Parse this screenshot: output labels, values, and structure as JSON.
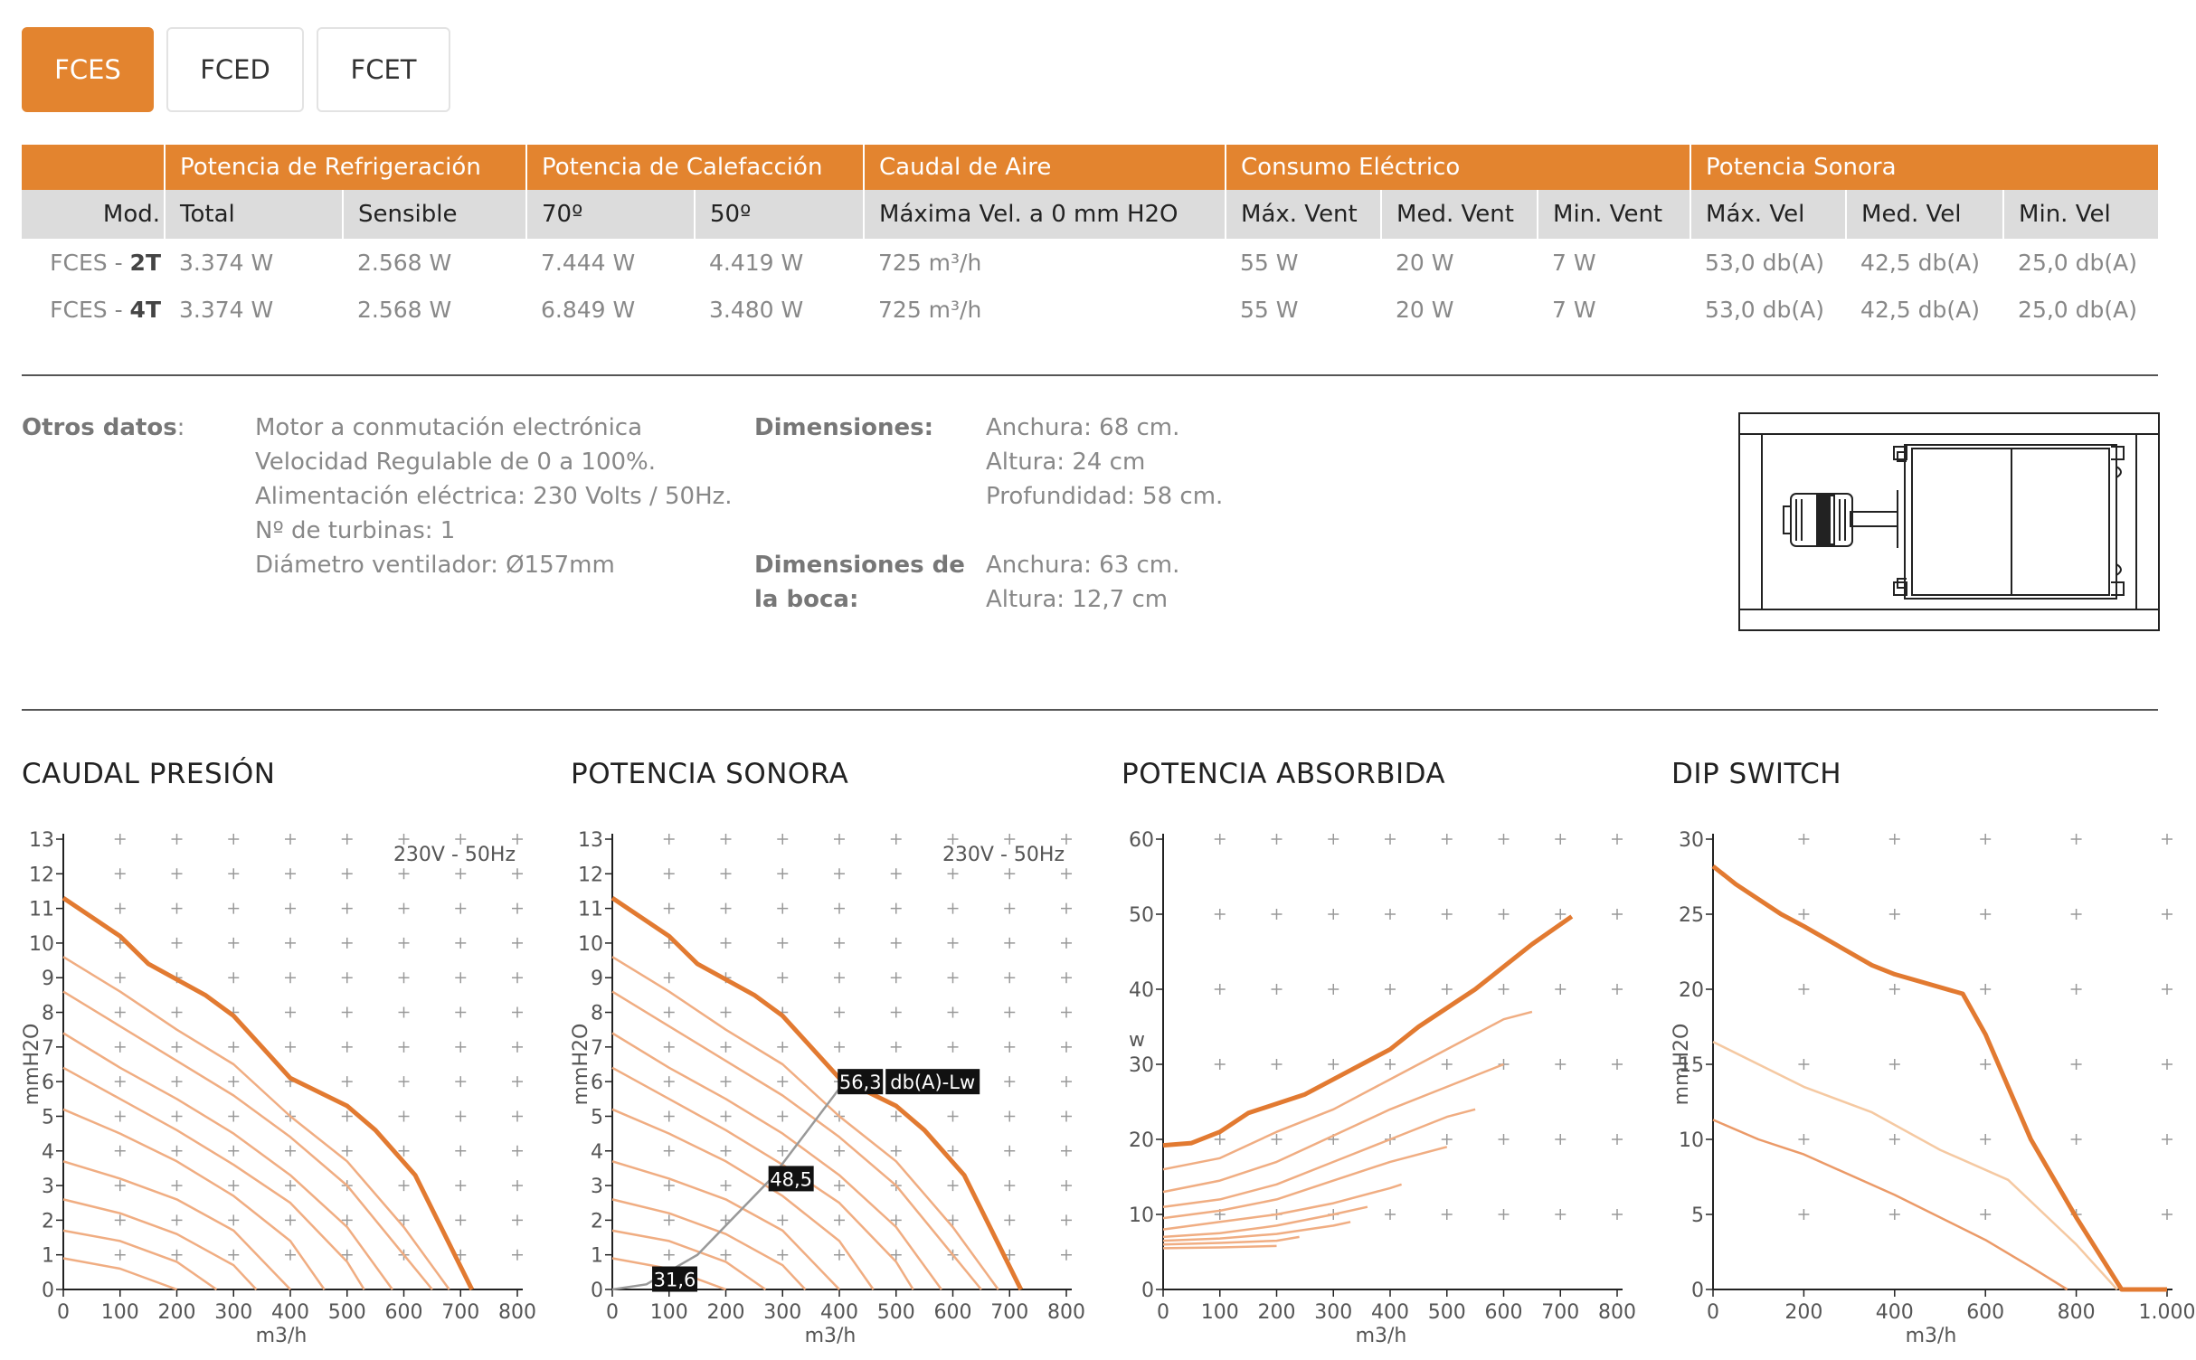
{
  "tabs": [
    {
      "label": "FCES",
      "active": true
    },
    {
      "label": "FCED",
      "active": false
    },
    {
      "label": "FCET",
      "active": false
    }
  ],
  "table": {
    "groups": [
      {
        "label": "",
        "span": 1
      },
      {
        "label": "Potencia de Refrigeración",
        "span": 2
      },
      {
        "label": "Potencia de Calefacción",
        "span": 2
      },
      {
        "label": "Caudal de Aire",
        "span": 1
      },
      {
        "label": "Consumo Eléctrico",
        "span": 3
      },
      {
        "label": "Potencia Sonora",
        "span": 3
      }
    ],
    "columns": [
      "Mod.",
      "Total",
      "Sensible",
      "70º",
      "50º",
      "Máxima Vel. a 0 mm H2O",
      "Máx. Vent",
      "Med. Vent",
      "Min. Vent",
      "Máx. Vel",
      "Med. Vel",
      "Min. Vel"
    ],
    "rows": [
      {
        "model_prefix": "FCES - ",
        "model_suffix": "2T",
        "cells": [
          "3.374 W",
          "2.568 W",
          "7.444 W",
          "4.419 W",
          "725 m³/h",
          "55 W",
          "20 W",
          "7 W",
          "53,0 db(A)",
          "42,5 db(A)",
          "25,0 db(A)"
        ]
      },
      {
        "model_prefix": "FCES - ",
        "model_suffix": "4T",
        "cells": [
          "3.374 W",
          "2.568 W",
          "6.849 W",
          "3.480 W",
          "725 m³/h",
          "55 W",
          "20 W",
          "7 W",
          "53,0 db(A)",
          "42,5 db(A)",
          "25,0 db(A)"
        ]
      }
    ]
  },
  "otros": {
    "label": "Otros datos",
    "colon": ":",
    "lines": [
      "Motor a conmutación electrónica",
      "Velocidad Regulable de 0 a 100%.",
      "Alimentación eléctrica: 230 Volts / 50Hz.",
      "Nº de turbinas: 1",
      "Diámetro ventilador: Ø157mm"
    ]
  },
  "dimensiones": {
    "label": "Dimensiones:",
    "lines": [
      "Anchura: 68 cm.",
      "Altura: 24 cm",
      "Profundidad: 58 cm."
    ]
  },
  "boca": {
    "label_line1": "Dimensiones de",
    "label_line2": "la boca:",
    "lines": [
      "Anchura: 63 cm.",
      "Altura: 12,7 cm"
    ]
  },
  "chart_data": [
    {
      "id": "caudal",
      "type": "line",
      "title": "CAUDAL PRESIÓN",
      "xlabel": "m3/h",
      "ylabel": "mmH2O",
      "annotation": "230V - 50Hz",
      "xlim": [
        0,
        800
      ],
      "ylim": [
        0,
        13
      ],
      "xticks": [
        "0",
        "100",
        "200",
        "300",
        "400",
        "500",
        "600",
        "700",
        "800"
      ],
      "yticks": [
        "0",
        "1",
        "2",
        "3",
        "4",
        "5",
        "6",
        "7",
        "8",
        "9",
        "10",
        "11",
        "12",
        "13"
      ],
      "xtick_values": [
        0,
        100,
        200,
        300,
        400,
        500,
        600,
        700,
        800
      ],
      "ytick_values": [
        0,
        1,
        2,
        3,
        4,
        5,
        6,
        7,
        8,
        9,
        10,
        11,
        12,
        13
      ],
      "grid_x": [
        100,
        200,
        300,
        400,
        500,
        600,
        700,
        800
      ],
      "grid_y": [
        1,
        2,
        3,
        4,
        5,
        6,
        7,
        8,
        9,
        10,
        11,
        12,
        13
      ],
      "series": [
        {
          "name": "max",
          "weight": "bold",
          "x": [
            0,
            100,
            150,
            250,
            300,
            400,
            500,
            550,
            620,
            720
          ],
          "y": [
            11.3,
            10.2,
            9.4,
            8.5,
            7.9,
            6.1,
            5.3,
            4.6,
            3.3,
            0
          ]
        },
        {
          "name": "s2",
          "x": [
            0,
            100,
            200,
            300,
            400,
            500,
            600,
            680
          ],
          "y": [
            9.6,
            8.6,
            7.5,
            6.5,
            5.0,
            3.7,
            1.8,
            0
          ]
        },
        {
          "name": "s3",
          "x": [
            0,
            100,
            200,
            300,
            400,
            500,
            600,
            650
          ],
          "y": [
            8.6,
            7.6,
            6.6,
            5.6,
            4.4,
            3.0,
            1.0,
            0
          ]
        },
        {
          "name": "s4",
          "x": [
            0,
            100,
            200,
            300,
            400,
            500,
            580
          ],
          "y": [
            7.4,
            6.4,
            5.5,
            4.5,
            3.3,
            1.8,
            0
          ]
        },
        {
          "name": "s5",
          "x": [
            0,
            100,
            200,
            300,
            400,
            500,
            530
          ],
          "y": [
            6.4,
            5.5,
            4.6,
            3.6,
            2.5,
            0.8,
            0
          ]
        },
        {
          "name": "s6",
          "x": [
            0,
            100,
            200,
            300,
            400,
            460
          ],
          "y": [
            5.2,
            4.5,
            3.7,
            2.7,
            1.4,
            0
          ]
        },
        {
          "name": "s7",
          "x": [
            0,
            100,
            200,
            300,
            400
          ],
          "y": [
            3.7,
            3.2,
            2.6,
            1.7,
            0
          ]
        },
        {
          "name": "s8",
          "x": [
            0,
            100,
            200,
            300,
            340
          ],
          "y": [
            2.6,
            2.2,
            1.6,
            0.7,
            0
          ]
        },
        {
          "name": "s9",
          "x": [
            0,
            100,
            200,
            270
          ],
          "y": [
            1.7,
            1.4,
            0.8,
            0
          ]
        },
        {
          "name": "s10",
          "x": [
            0,
            100,
            200
          ],
          "y": [
            0.9,
            0.6,
            0
          ]
        }
      ]
    },
    {
      "id": "sonora",
      "type": "line",
      "title": "POTENCIA SONORA",
      "xlabel": "m3/h",
      "ylabel": "mmH2O",
      "annotation": "230V - 50Hz",
      "xlim": [
        0,
        800
      ],
      "ylim": [
        0,
        13
      ],
      "xticks": [
        "0",
        "100",
        "200",
        "300",
        "400",
        "500",
        "600",
        "700",
        "800"
      ],
      "yticks": [
        "0",
        "1",
        "2",
        "3",
        "4",
        "5",
        "6",
        "7",
        "8",
        "9",
        "10",
        "11",
        "12",
        "13"
      ],
      "xtick_values": [
        0,
        100,
        200,
        300,
        400,
        500,
        600,
        700,
        800
      ],
      "ytick_values": [
        0,
        1,
        2,
        3,
        4,
        5,
        6,
        7,
        8,
        9,
        10,
        11,
        12,
        13
      ],
      "grid_x": [
        100,
        200,
        300,
        400,
        500,
        600,
        700,
        800
      ],
      "grid_y": [
        1,
        2,
        3,
        4,
        5,
        6,
        7,
        8,
        9,
        10,
        11,
        12,
        13
      ],
      "series": [
        {
          "name": "max",
          "weight": "bold",
          "x": [
            0,
            100,
            150,
            250,
            300,
            400,
            500,
            550,
            620,
            720
          ],
          "y": [
            11.3,
            10.2,
            9.4,
            8.5,
            7.9,
            6.1,
            5.3,
            4.6,
            3.3,
            0
          ]
        },
        {
          "name": "s2",
          "x": [
            0,
            100,
            200,
            300,
            400,
            500,
            600,
            680
          ],
          "y": [
            9.6,
            8.6,
            7.5,
            6.5,
            5.0,
            3.7,
            1.8,
            0
          ]
        },
        {
          "name": "s3",
          "x": [
            0,
            100,
            200,
            300,
            400,
            500,
            600,
            650
          ],
          "y": [
            8.6,
            7.6,
            6.6,
            5.6,
            4.4,
            3.0,
            1.0,
            0
          ]
        },
        {
          "name": "s4",
          "x": [
            0,
            100,
            200,
            300,
            400,
            500,
            580
          ],
          "y": [
            7.4,
            6.4,
            5.5,
            4.5,
            3.3,
            1.8,
            0
          ]
        },
        {
          "name": "s5",
          "x": [
            0,
            100,
            200,
            300,
            400,
            500,
            530
          ],
          "y": [
            6.4,
            5.5,
            4.6,
            3.6,
            2.5,
            0.8,
            0
          ]
        },
        {
          "name": "s6",
          "x": [
            0,
            100,
            200,
            300,
            400,
            460
          ],
          "y": [
            5.2,
            4.5,
            3.7,
            2.7,
            1.4,
            0
          ]
        },
        {
          "name": "s7",
          "x": [
            0,
            100,
            200,
            300,
            400
          ],
          "y": [
            3.7,
            3.2,
            2.6,
            1.7,
            0
          ]
        },
        {
          "name": "s8",
          "x": [
            0,
            100,
            200,
            300,
            340
          ],
          "y": [
            2.6,
            2.2,
            1.6,
            0.7,
            0
          ]
        },
        {
          "name": "s9",
          "x": [
            0,
            100,
            200,
            270
          ],
          "y": [
            1.7,
            1.4,
            0.8,
            0
          ]
        },
        {
          "name": "s10",
          "x": [
            0,
            100,
            200
          ],
          "y": [
            0.9,
            0.6,
            0
          ]
        }
      ],
      "sound_curve": {
        "x": [
          0,
          60,
          150,
          280,
          400,
          420
        ],
        "y": [
          0,
          0.15,
          1.0,
          3.2,
          5.8,
          6.0
        ]
      },
      "sound_points": [
        {
          "label": "31,6",
          "x": 110,
          "y": 0.3
        },
        {
          "label": "48,5",
          "x": 315,
          "y": 3.2
        },
        {
          "label": "56,3",
          "x": 437,
          "y": 6.0
        }
      ],
      "sound_unit": "db(A)-Lw"
    },
    {
      "id": "absorbida",
      "type": "line",
      "title": "POTENCIA ABSORBIDA",
      "xlabel": "m3/h",
      "ylabel": "w",
      "annotation": "",
      "xlim": [
        0,
        800
      ],
      "ylim": [
        0,
        60
      ],
      "xticks": [
        "0",
        "100",
        "200",
        "300",
        "400",
        "500",
        "600",
        "700",
        "800"
      ],
      "yticks": [
        "0",
        "10",
        "20",
        "30",
        "40",
        "50",
        "60"
      ],
      "xtick_values": [
        0,
        100,
        200,
        300,
        400,
        500,
        600,
        700,
        800
      ],
      "ytick_values": [
        0,
        10,
        20,
        30,
        40,
        50,
        60
      ],
      "grid_x": [
        100,
        200,
        300,
        400,
        500,
        600,
        700,
        800
      ],
      "grid_y": [
        10,
        20,
        30,
        40,
        50,
        60
      ],
      "series": [
        {
          "name": "max",
          "weight": "bold",
          "x": [
            0,
            50,
            100,
            150,
            250,
            300,
            400,
            450,
            550,
            600,
            650,
            720
          ],
          "y": [
            19.2,
            19.5,
            21,
            23.5,
            26,
            28,
            32,
            35,
            40,
            43,
            46,
            49.7
          ]
        },
        {
          "name": "s2",
          "x": [
            0,
            100,
            200,
            300,
            400,
            500,
            600,
            650
          ],
          "y": [
            16,
            17.5,
            21,
            24,
            28,
            32,
            36,
            37
          ]
        },
        {
          "name": "s3",
          "x": [
            0,
            100,
            200,
            300,
            400,
            500,
            600
          ],
          "y": [
            13,
            14.5,
            17,
            20.5,
            24,
            27,
            30
          ]
        },
        {
          "name": "s4",
          "x": [
            0,
            100,
            200,
            300,
            400,
            500,
            550
          ],
          "y": [
            11,
            12,
            14,
            17,
            20,
            23,
            24
          ]
        },
        {
          "name": "s5",
          "x": [
            0,
            100,
            200,
            300,
            400,
            500
          ],
          "y": [
            9.5,
            10.5,
            12,
            14.5,
            17,
            19
          ]
        },
        {
          "name": "s6",
          "x": [
            0,
            100,
            200,
            300,
            400,
            420
          ],
          "y": [
            8,
            9,
            10,
            11.5,
            13.5,
            14
          ]
        },
        {
          "name": "s7",
          "x": [
            0,
            100,
            200,
            300,
            360
          ],
          "y": [
            7,
            7.5,
            8.5,
            10,
            11
          ]
        },
        {
          "name": "s8",
          "x": [
            0,
            100,
            200,
            300,
            330
          ],
          "y": [
            6.5,
            6.8,
            7.4,
            8.5,
            9
          ]
        },
        {
          "name": "s9",
          "x": [
            0,
            100,
            200,
            240
          ],
          "y": [
            6,
            6.2,
            6.5,
            7
          ]
        },
        {
          "name": "s10",
          "x": [
            0,
            100,
            200
          ],
          "y": [
            5.5,
            5.6,
            5.8
          ]
        }
      ]
    },
    {
      "id": "dip",
      "type": "line",
      "title": "DIP SWITCH",
      "xlabel": "m3/h",
      "ylabel": "mmH2O",
      "annotation": "",
      "xlim": [
        0,
        1000
      ],
      "ylim": [
        0,
        30
      ],
      "xticks": [
        "0",
        "200",
        "400",
        "600",
        "800",
        "1.000"
      ],
      "yticks": [
        "0",
        "5",
        "10",
        "15",
        "20",
        "25",
        "30"
      ],
      "xtick_values": [
        0,
        200,
        400,
        600,
        800,
        1000
      ],
      "ytick_values": [
        0,
        5,
        10,
        15,
        20,
        25,
        30
      ],
      "grid_x": [
        200,
        400,
        600,
        800,
        1000
      ],
      "grid_y": [
        5,
        10,
        15,
        20,
        25,
        30
      ],
      "series": [
        {
          "name": "max",
          "weight": "bold",
          "x": [
            0,
            50,
            150,
            200,
            350,
            400,
            550,
            600,
            700,
            800,
            900,
            1000
          ],
          "y": [
            28.2,
            27,
            25,
            24.2,
            21.6,
            21,
            19.7,
            17,
            10,
            4.8,
            0,
            0
          ]
        },
        {
          "name": "mid",
          "weight": "light",
          "x": [
            0,
            200,
            350,
            500,
            650,
            800,
            890
          ],
          "y": [
            16.5,
            13.5,
            11.8,
            9.3,
            7.3,
            3.0,
            0
          ]
        },
        {
          "name": "low",
          "weight": "medium",
          "x": [
            0,
            100,
            200,
            400,
            600,
            700,
            780
          ],
          "y": [
            11.3,
            10,
            9,
            6.3,
            3.3,
            1.5,
            0
          ]
        }
      ]
    }
  ]
}
